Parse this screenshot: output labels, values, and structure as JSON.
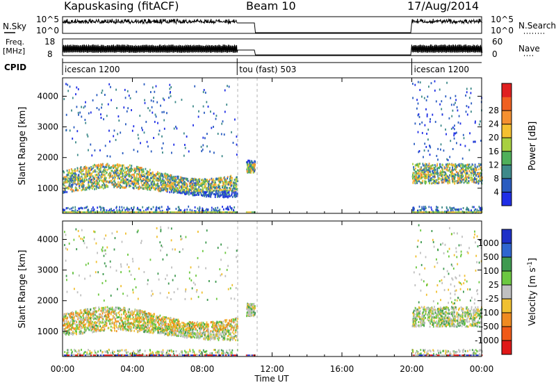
{
  "header": {
    "station": "Kapuskasing (fitACF)",
    "beam": "Beam 10",
    "date": "17/Aug/2014"
  },
  "strips": {
    "nsky": {
      "label": "N.Sky",
      "ticks": [
        "10^5",
        "10^0"
      ]
    },
    "nsearch": {
      "label": "N.Search",
      "ticks": [
        "10^5",
        "10^0"
      ]
    },
    "freq": {
      "label_line1": "Freq.",
      "label_line2": "[MHz]",
      "ticks": [
        "18",
        "8"
      ]
    },
    "nave": {
      "label": "Nave",
      "ticks": [
        "60",
        "0"
      ]
    },
    "cpid": {
      "label": "CPID",
      "segments": [
        {
          "name": "icescan 1200",
          "start_h": 0,
          "end_h": 10
        },
        {
          "name": "tou (fast) 503",
          "start_h": 10,
          "end_h": 20
        },
        {
          "name": "icescan 1200",
          "start_h": 20,
          "end_h": 24
        }
      ]
    }
  },
  "chart_data": [
    {
      "type": "heatmap",
      "title": "",
      "ylabel": "Slant Range [km]",
      "xlabel": "",
      "ylim": [
        180,
        4600
      ],
      "xlim_hours": [
        0,
        24
      ],
      "yticks": [
        "1000",
        "2000",
        "3000",
        "4000"
      ],
      "colorbar": {
        "label": "Power [dB]",
        "ticks": [
          "4",
          "8",
          "12",
          "16",
          "20",
          "24",
          "28"
        ],
        "colors": [
          "#1f2ee6",
          "#2a5cc0",
          "#3e8a8a",
          "#4fb05a",
          "#a8d040",
          "#f5c030",
          "#f59030",
          "#f06020",
          "#e02020"
        ]
      },
      "data_windows_hours": [
        [
          0,
          10
        ],
        [
          10.5,
          11
        ],
        [
          20,
          24
        ]
      ],
      "echo_bands_km": [
        [
          900,
          1700
        ],
        [
          1200,
          1800
        ]
      ]
    },
    {
      "type": "heatmap",
      "title": "",
      "ylabel": "Slant Range [km]",
      "xlabel": "Time UT",
      "ylim": [
        180,
        4600
      ],
      "xlim_hours": [
        0,
        24
      ],
      "xticks": [
        "00:00",
        "04:00",
        "08:00",
        "12:00",
        "16:00",
        "20:00",
        "00:00"
      ],
      "yticks": [
        "1000",
        "2000",
        "3000",
        "4000"
      ],
      "colorbar": {
        "label": "Velocity [m s",
        "label_sup": "-1",
        "label_end": "]",
        "ticks": [
          "1000",
          "500",
          "100",
          "25",
          "-25",
          "-100",
          "-500",
          "-1000"
        ],
        "colors": [
          "#1e30c8",
          "#2f66d0",
          "#3f9a50",
          "#6cc840",
          "#c0c0c0",
          "#f0c030",
          "#f08a20",
          "#f05a18",
          "#e01818"
        ]
      },
      "data_windows_hours": [
        [
          0,
          10
        ],
        [
          10.5,
          11
        ],
        [
          20,
          24
        ]
      ],
      "echo_bands_km": [
        [
          900,
          1700
        ],
        [
          1200,
          1800
        ]
      ]
    }
  ]
}
